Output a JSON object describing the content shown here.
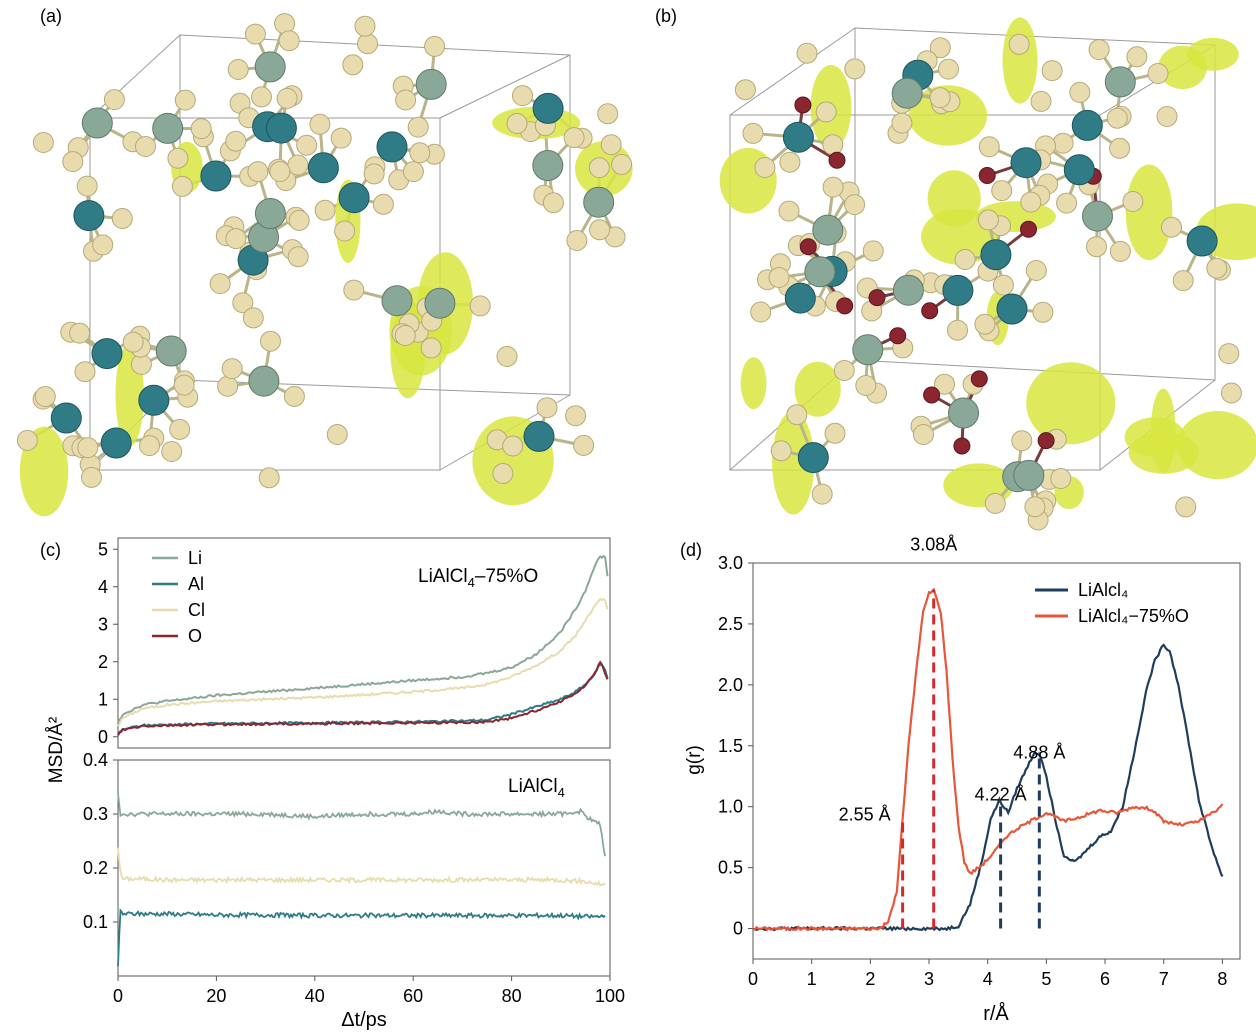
{
  "panels": {
    "a": {
      "label": "(a)"
    },
    "b": {
      "label": "(b)"
    },
    "c": {
      "label": "(c)"
    },
    "d": {
      "label": "(d)"
    }
  },
  "colors": {
    "li": "#8aa898",
    "al": "#2f7c86",
    "cl": "#e8dcae",
    "o": "#8b2530",
    "isosurface": "#d8e640",
    "rdf_pure": "#1f3d5c",
    "rdf_oxygen": "#e8563a",
    "rdf_marker_red": "#d62828",
    "rdf_marker_navy": "#1f3d5c"
  },
  "chart_data": [
    {
      "id": "c-top",
      "type": "line",
      "annotation_text": "LiAlCl",
      "annotation_sub": "4",
      "annotation_suffix": "–75%O",
      "legend": [
        "Li",
        "Al",
        "Cl",
        "O"
      ],
      "legend_colors": [
        "#8aa898",
        "#2f7c86",
        "#e8dcae",
        "#8b2530"
      ],
      "xlim": [
        0,
        100
      ],
      "ylim": [
        -0.3,
        5.3
      ],
      "yticks": [
        0,
        1,
        2,
        3,
        4,
        5
      ],
      "series": [
        {
          "name": "Li",
          "color": "#8aa898",
          "x": [
            0,
            1,
            5,
            10,
            20,
            30,
            40,
            50,
            60,
            70,
            75,
            80,
            85,
            90,
            93,
            95,
            97,
            98,
            99,
            99.5
          ],
          "y": [
            0.4,
            0.6,
            0.85,
            0.95,
            1.1,
            1.2,
            1.3,
            1.4,
            1.5,
            1.6,
            1.7,
            1.85,
            2.2,
            2.8,
            3.4,
            3.9,
            4.6,
            4.8,
            4.8,
            4.3
          ]
        },
        {
          "name": "Cl",
          "color": "#e8dcae",
          "x": [
            0,
            1,
            5,
            10,
            20,
            30,
            40,
            50,
            60,
            70,
            75,
            80,
            85,
            90,
            93,
            95,
            97,
            98,
            99,
            99.5
          ],
          "y": [
            0.3,
            0.5,
            0.75,
            0.85,
            0.95,
            1.0,
            1.05,
            1.12,
            1.2,
            1.3,
            1.4,
            1.6,
            1.9,
            2.3,
            2.7,
            3.1,
            3.5,
            3.65,
            3.65,
            3.4
          ]
        },
        {
          "name": "Al",
          "color": "#2f7c86",
          "x": [
            0,
            1,
            5,
            10,
            20,
            30,
            40,
            50,
            60,
            70,
            75,
            80,
            85,
            90,
            93,
            95,
            97,
            98,
            99,
            99.5
          ],
          "y": [
            0.05,
            0.2,
            0.3,
            0.32,
            0.35,
            0.36,
            0.37,
            0.38,
            0.4,
            0.42,
            0.45,
            0.6,
            0.8,
            1.0,
            1.2,
            1.4,
            1.7,
            1.95,
            1.8,
            1.55
          ]
        },
        {
          "name": "O",
          "color": "#8b2530",
          "x": [
            0,
            1,
            5,
            10,
            20,
            30,
            40,
            50,
            60,
            70,
            75,
            80,
            85,
            90,
            93,
            95,
            97,
            98,
            99,
            99.5
          ],
          "y": [
            0.05,
            0.18,
            0.28,
            0.3,
            0.33,
            0.34,
            0.35,
            0.36,
            0.37,
            0.38,
            0.4,
            0.5,
            0.7,
            0.95,
            1.15,
            1.35,
            1.7,
            2.0,
            1.7,
            1.5
          ]
        }
      ]
    },
    {
      "id": "c-bottom",
      "type": "line",
      "annotation_text": "LiAlCl",
      "annotation_sub": "4",
      "xlabel": "Δt/ps",
      "ylabel": "MSD/Å²",
      "xlim": [
        0,
        100
      ],
      "ylim": [
        0,
        0.4
      ],
      "xticks": [
        0,
        20,
        40,
        60,
        80,
        100
      ],
      "yticks": [
        0.1,
        0.2,
        0.3,
        0.4
      ],
      "series": [
        {
          "name": "Li",
          "color": "#8aa898",
          "x": [
            0,
            0.5,
            1,
            5,
            10,
            20,
            30,
            40,
            50,
            60,
            65,
            70,
            80,
            90,
            94,
            96,
            98,
            99
          ],
          "y": [
            0.34,
            0.3,
            0.3,
            0.3,
            0.3,
            0.3,
            0.3,
            0.295,
            0.3,
            0.3,
            0.305,
            0.3,
            0.3,
            0.3,
            0.305,
            0.29,
            0.28,
            0.22
          ]
        },
        {
          "name": "Cl",
          "color": "#e8dcae",
          "x": [
            0,
            0.5,
            1,
            5,
            10,
            20,
            30,
            40,
            50,
            60,
            70,
            80,
            90,
            95,
            98,
            99
          ],
          "y": [
            0.24,
            0.19,
            0.18,
            0.18,
            0.178,
            0.178,
            0.178,
            0.178,
            0.178,
            0.178,
            0.178,
            0.178,
            0.178,
            0.175,
            0.17,
            0.17
          ]
        },
        {
          "name": "Al",
          "color": "#2f7c86",
          "x": [
            0,
            0.5,
            1,
            5,
            10,
            20,
            30,
            40,
            50,
            60,
            70,
            80,
            90,
            95,
            98,
            99
          ],
          "y": [
            0.02,
            0.12,
            0.115,
            0.115,
            0.115,
            0.113,
            0.113,
            0.112,
            0.112,
            0.112,
            0.112,
            0.112,
            0.112,
            0.11,
            0.11,
            0.115
          ]
        }
      ]
    },
    {
      "id": "d",
      "type": "line",
      "xlabel": "r/Å",
      "ylabel": "g(r)",
      "xlim": [
        0,
        8.3
      ],
      "ylim": [
        -0.25,
        3.0
      ],
      "xticks": [
        0,
        1,
        2,
        3,
        4,
        5,
        6,
        7,
        8
      ],
      "yticks": [
        0,
        0.5,
        1.0,
        1.5,
        2.0,
        2.5,
        3.0
      ],
      "legend": [
        "LiAlcl₄",
        "LiAlcl₄−75%O"
      ],
      "series": [
        {
          "name": "LiAlcl₄",
          "color": "#1f3d5c",
          "x": [
            0,
            3.3,
            3.5,
            3.7,
            3.9,
            4.05,
            4.2,
            4.35,
            4.5,
            4.65,
            4.8,
            4.9,
            5.0,
            5.15,
            5.3,
            5.5,
            5.7,
            5.9,
            6.1,
            6.3,
            6.5,
            6.7,
            6.85,
            7.0,
            7.1,
            7.25,
            7.4,
            7.6,
            7.8,
            8.0
          ],
          "y": [
            0,
            0,
            0.02,
            0.2,
            0.55,
            0.9,
            1.05,
            0.95,
            1.15,
            1.3,
            1.45,
            1.42,
            1.25,
            0.9,
            0.6,
            0.55,
            0.65,
            0.75,
            0.8,
            1.0,
            1.45,
            1.95,
            2.2,
            2.33,
            2.28,
            2.0,
            1.6,
            1.05,
            0.7,
            0.42
          ]
        },
        {
          "name": "LiAlcl₄−75%O",
          "color": "#e8563a",
          "x": [
            0,
            2.15,
            2.3,
            2.45,
            2.55,
            2.65,
            2.8,
            2.9,
            3.0,
            3.08,
            3.2,
            3.3,
            3.4,
            3.5,
            3.6,
            3.7,
            3.9,
            4.1,
            4.3,
            4.5,
            4.8,
            5.0,
            5.3,
            5.6,
            5.9,
            6.2,
            6.5,
            6.8,
            7.0,
            7.3,
            7.6,
            7.9,
            8.0
          ],
          "y": [
            0,
            0,
            0.05,
            0.3,
            0.9,
            1.5,
            2.2,
            2.6,
            2.75,
            2.78,
            2.6,
            2.1,
            1.4,
            0.85,
            0.55,
            0.45,
            0.52,
            0.62,
            0.75,
            0.82,
            0.9,
            0.95,
            0.88,
            0.92,
            0.97,
            0.95,
            1.0,
            0.98,
            0.88,
            0.85,
            0.88,
            0.97,
            1.02
          ]
        }
      ],
      "markers": [
        {
          "x": 2.55,
          "label": "2.55 Å",
          "color": "#d62828"
        },
        {
          "x": 3.08,
          "label": "3.08Å",
          "color": "#d62828"
        },
        {
          "x": 4.22,
          "label": "4.22 Å",
          "color": "#1f3d5c"
        },
        {
          "x": 4.88,
          "label": "4.88 Å",
          "color": "#1f3d5c"
        }
      ]
    }
  ]
}
